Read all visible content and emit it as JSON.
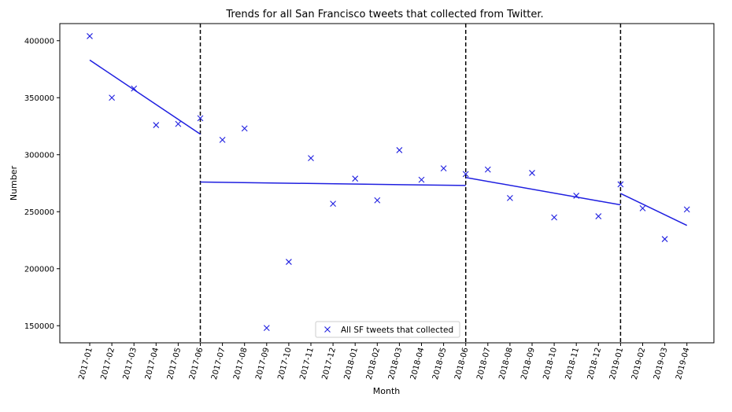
{
  "chart_data": {
    "type": "scatter",
    "title": "Trends for all San Francisco tweets that collected from Twitter.",
    "xlabel": "Month",
    "ylabel": "Number",
    "ylim": [
      135000,
      415000
    ],
    "yticks": [
      150000,
      200000,
      250000,
      300000,
      350000,
      400000
    ],
    "grid": false,
    "legend_position": "bottom-center",
    "categories": [
      "2017-01",
      "2017-02",
      "2017-03",
      "2017-04",
      "2017-05",
      "2017-06",
      "2017-07",
      "2017-08",
      "2017-09",
      "2017-10",
      "2017-11",
      "2017-12",
      "2018-01",
      "2018-02",
      "2018-03",
      "2018-04",
      "2018-05",
      "2018-06",
      "2018-07",
      "2018-08",
      "2018-09",
      "2018-10",
      "2018-11",
      "2018-12",
      "2019-01",
      "2019-02",
      "2019-03",
      "2019-04"
    ],
    "series": [
      {
        "name": "All SF tweets that collected",
        "marker": "x",
        "color": "#1f1fe0",
        "values": [
          404000,
          350000,
          358000,
          326000,
          327000,
          332000,
          313000,
          323000,
          148000,
          206000,
          297000,
          257000,
          279000,
          260000,
          304000,
          278000,
          288000,
          283000,
          287000,
          262000,
          284000,
          245000,
          264000,
          246000,
          274000,
          253000,
          226000,
          252000
        ]
      }
    ],
    "trend_lines": [
      {
        "from": "2017-01",
        "to": "2017-06",
        "start": 383000,
        "end": 318000
      },
      {
        "from": "2017-06",
        "to": "2018-06",
        "start": 276000,
        "end": 273000
      },
      {
        "from": "2018-06",
        "to": "2019-01",
        "start": 280000,
        "end": 256000
      },
      {
        "from": "2019-01",
        "to": "2019-04",
        "start": 266000,
        "end": 238000
      }
    ],
    "vertical_lines": [
      "2017-06",
      "2018-06",
      "2019-01"
    ],
    "line_color": "#1f1fe0"
  }
}
